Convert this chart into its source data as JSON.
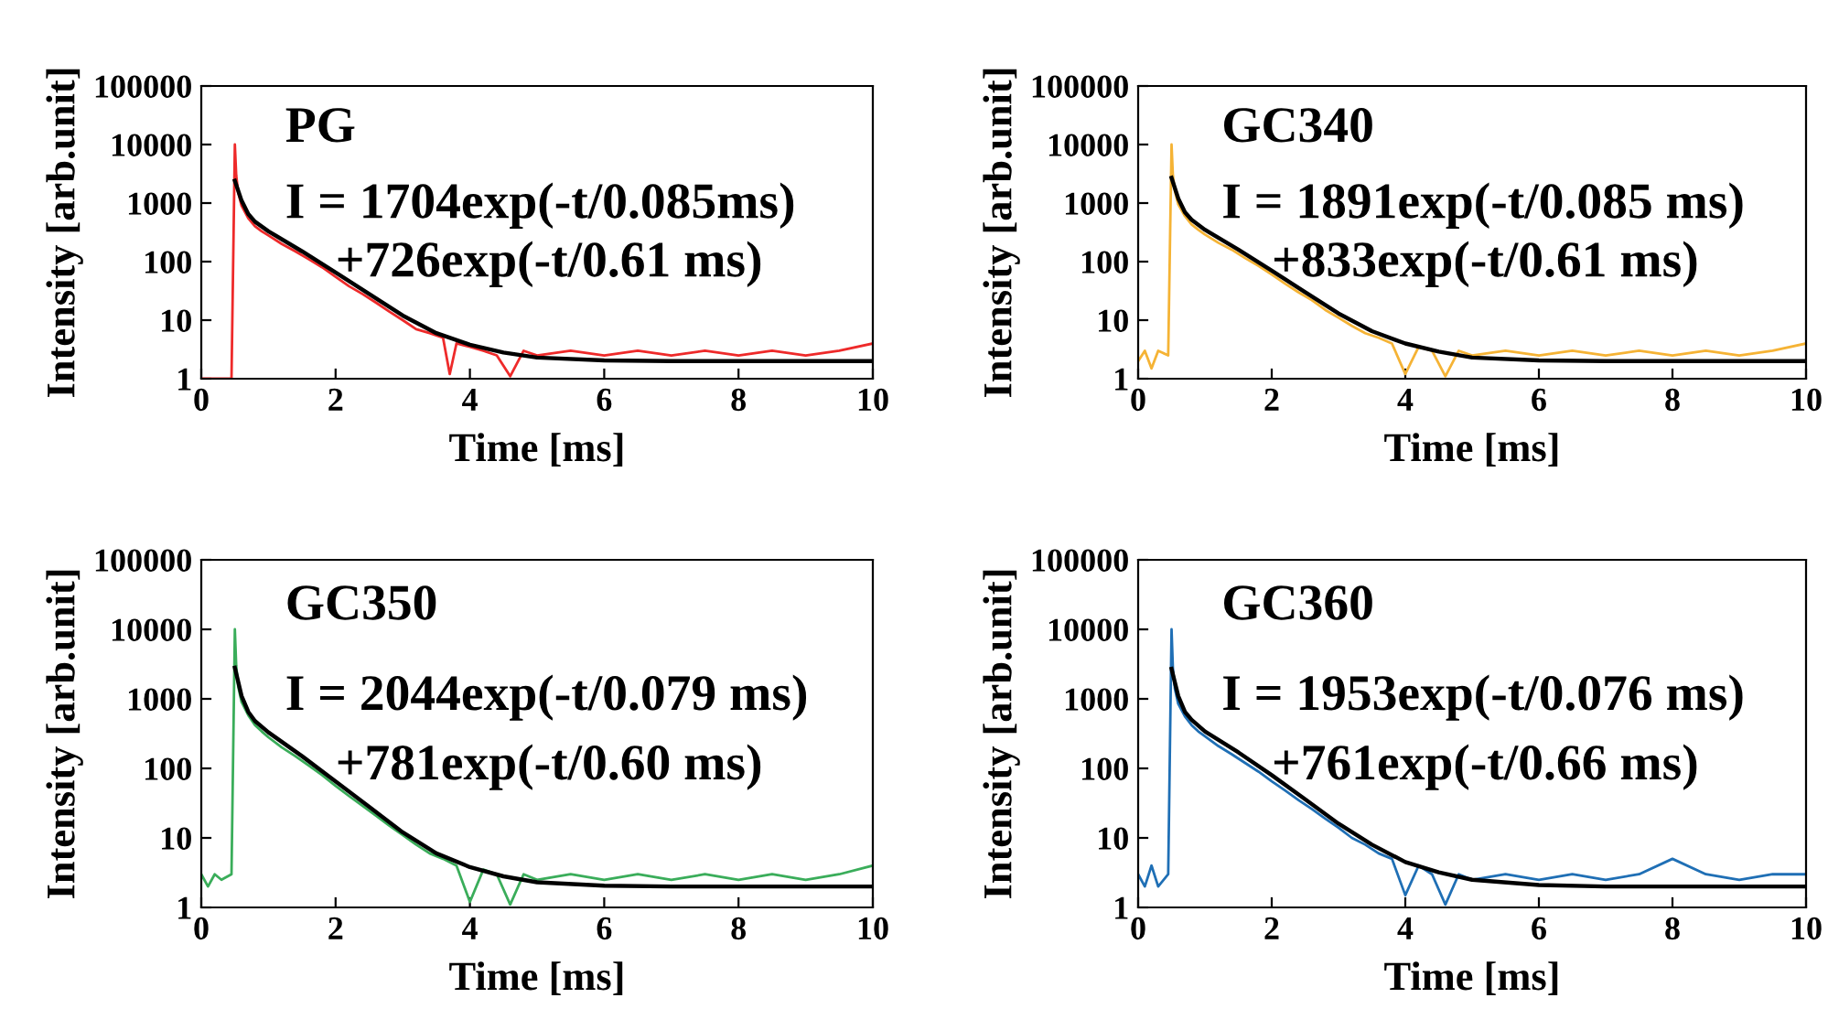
{
  "chart_data": [
    {
      "type": "line",
      "title": "PG",
      "xlabel": "Time [ms]",
      "ylabel": "Intensity [arb.unit]",
      "log": "y",
      "xlim": [
        0,
        10
      ],
      "ylim": [
        1,
        100000
      ],
      "xticks": [
        0,
        2,
        4,
        6,
        8,
        10
      ],
      "yticks": [
        1,
        10,
        100,
        1000,
        10000,
        100000
      ],
      "grid": false,
      "annotations": [
        "I = 1704exp(-t/0.085ms)",
        "+726exp(-t/0.61 ms)"
      ],
      "series": [
        {
          "color": "#ee2a2a",
          "x": [
            0,
            0.45,
            0.5,
            0.52,
            0.55,
            0.6,
            0.7,
            0.8,
            0.9,
            1.0,
            1.2,
            1.4,
            1.6,
            1.8,
            2.0,
            2.2,
            2.4,
            2.6,
            2.8,
            3.0,
            3.2,
            3.4,
            3.6,
            3.7,
            3.8,
            4.0,
            4.2,
            4.4,
            4.6,
            4.8,
            5.0,
            5.5,
            6,
            6.5,
            7,
            7.5,
            8,
            8.5,
            9,
            9.5,
            10
          ],
          "values": [
            1,
            1,
            10000,
            3000,
            1500,
            900,
            550,
            400,
            330,
            280,
            200,
            150,
            110,
            80,
            55,
            38,
            28,
            20,
            14,
            10,
            7,
            6,
            5,
            1.2,
            4,
            3.5,
            3,
            2.5,
            1.1,
            3,
            2.5,
            3,
            2.5,
            3,
            2.5,
            3,
            2.5,
            3,
            2.5,
            3,
            4
          ]
        },
        {
          "color": "#000000",
          "x": [
            0.5,
            0.6,
            0.7,
            0.8,
            1.0,
            1.5,
            2,
            2.5,
            3,
            3.5,
            4,
            4.5,
            5,
            6,
            7,
            8,
            10
          ],
          "values": [
            2400,
            1100,
            650,
            480,
            330,
            150,
            65,
            28,
            12,
            6,
            3.8,
            2.8,
            2.3,
            2.05,
            2,
            2,
            2
          ]
        }
      ]
    },
    {
      "type": "line",
      "title": "GC340",
      "xlabel": "Time [ms]",
      "ylabel": "Intensity [arb.unit]",
      "log": "y",
      "xlim": [
        0,
        10
      ],
      "ylim": [
        1,
        100000
      ],
      "xticks": [
        0,
        2,
        4,
        6,
        8,
        10
      ],
      "yticks": [
        1,
        10,
        100,
        1000,
        10000,
        100000
      ],
      "grid": false,
      "annotations": [
        "I = 1891exp(-t/0.085 ms)",
        "+833exp(-t/0.61 ms)"
      ],
      "series": [
        {
          "color": "#f5b335",
          "x": [
            0,
            0.1,
            0.2,
            0.3,
            0.45,
            0.5,
            0.52,
            0.55,
            0.6,
            0.7,
            0.8,
            0.9,
            1.0,
            1.2,
            1.4,
            1.6,
            1.8,
            2.0,
            2.2,
            2.4,
            2.6,
            2.8,
            3.0,
            3.2,
            3.4,
            3.6,
            3.8,
            4.0,
            4.2,
            4.4,
            4.6,
            4.8,
            5.0,
            5.5,
            6,
            6.5,
            7,
            7.5,
            8,
            8.5,
            9,
            9.5,
            10
          ],
          "values": [
            2,
            3,
            1.5,
            3,
            2.5,
            10000,
            3000,
            1600,
            950,
            600,
            430,
            350,
            290,
            210,
            160,
            115,
            85,
            60,
            42,
            30,
            22,
            15,
            11,
            8,
            6,
            5,
            4,
            1.2,
            3.5,
            3,
            1.1,
            3,
            2.5,
            3,
            2.5,
            3,
            2.5,
            3,
            2.5,
            3,
            2.5,
            3,
            4
          ]
        },
        {
          "color": "#000000",
          "x": [
            0.5,
            0.6,
            0.7,
            0.8,
            1.0,
            1.5,
            2,
            2.5,
            3,
            3.5,
            4,
            4.5,
            5,
            6,
            7,
            8,
            10
          ],
          "values": [
            2700,
            1200,
            700,
            520,
            350,
            160,
            70,
            30,
            13,
            6.5,
            4,
            2.9,
            2.3,
            2.05,
            2,
            2,
            2
          ]
        }
      ]
    },
    {
      "type": "line",
      "title": "GC350",
      "xlabel": "Time [ms]",
      "ylabel": "Intensity [arb.unit]",
      "log": "y",
      "xlim": [
        0,
        10
      ],
      "ylim": [
        1,
        100000
      ],
      "xticks": [
        0,
        2,
        4,
        6,
        8,
        10
      ],
      "yticks": [
        1,
        10,
        100,
        1000,
        10000,
        100000
      ],
      "grid": false,
      "annotations": [
        "I = 2044exp(-t/0.079 ms)",
        "+781exp(-t/0.60 ms)"
      ],
      "series": [
        {
          "color": "#3aad5a",
          "x": [
            0,
            0.1,
            0.2,
            0.3,
            0.45,
            0.5,
            0.52,
            0.55,
            0.6,
            0.7,
            0.8,
            0.9,
            1.0,
            1.2,
            1.4,
            1.6,
            1.8,
            2.0,
            2.2,
            2.4,
            2.6,
            2.8,
            3.0,
            3.2,
            3.4,
            3.6,
            3.8,
            4.0,
            4.2,
            4.4,
            4.6,
            4.8,
            5.0,
            5.5,
            6,
            6.5,
            7,
            7.5,
            8,
            8.5,
            9,
            9.5,
            10
          ],
          "values": [
            3,
            2,
            3,
            2.5,
            3,
            10000,
            3000,
            1500,
            900,
            580,
            420,
            340,
            280,
            200,
            150,
            110,
            80,
            56,
            40,
            29,
            21,
            15,
            11,
            8,
            6,
            5,
            4,
            1.2,
            3.5,
            3,
            1.1,
            3,
            2.5,
            3,
            2.5,
            3,
            2.5,
            3,
            2.5,
            3,
            2.5,
            3,
            4
          ]
        },
        {
          "color": "#000000",
          "x": [
            0.5,
            0.6,
            0.7,
            0.8,
            1.0,
            1.5,
            2,
            2.5,
            3,
            3.5,
            4,
            4.5,
            5,
            6,
            7,
            8,
            10
          ],
          "values": [
            2800,
            1100,
            650,
            480,
            330,
            150,
            65,
            28,
            12,
            6,
            3.8,
            2.8,
            2.3,
            2.05,
            2,
            2,
            2
          ]
        }
      ]
    },
    {
      "type": "line",
      "title": "GC360",
      "xlabel": "Time [ms]",
      "ylabel": "Intensity [arb.unit]",
      "log": "y",
      "xlim": [
        0,
        10
      ],
      "ylim": [
        1,
        100000
      ],
      "xticks": [
        0,
        2,
        4,
        6,
        8,
        10
      ],
      "yticks": [
        1,
        10,
        100,
        1000,
        10000,
        100000
      ],
      "grid": false,
      "annotations": [
        "I = 1953exp(-t/0.076 ms)",
        "+761exp(-t/0.66 ms)"
      ],
      "series": [
        {
          "color": "#1f6fb5",
          "x": [
            0,
            0.1,
            0.2,
            0.3,
            0.45,
            0.5,
            0.52,
            0.55,
            0.6,
            0.7,
            0.8,
            0.9,
            1.0,
            1.2,
            1.4,
            1.6,
            1.8,
            2.0,
            2.2,
            2.4,
            2.6,
            2.8,
            3.0,
            3.2,
            3.4,
            3.6,
            3.8,
            4.0,
            4.2,
            4.4,
            4.6,
            4.8,
            5.0,
            5.5,
            6,
            6.5,
            7,
            7.5,
            8,
            8.5,
            9,
            9.5,
            10
          ],
          "values": [
            3,
            2,
            4,
            2,
            3,
            10000,
            2800,
            1400,
            850,
            560,
            420,
            340,
            290,
            210,
            160,
            120,
            90,
            65,
            48,
            35,
            26,
            19,
            14,
            10,
            8,
            6,
            5,
            1.5,
            4,
            3,
            1.1,
            3,
            2.5,
            3,
            2.5,
            3,
            2.5,
            3,
            5,
            3,
            2.5,
            3,
            3
          ]
        },
        {
          "color": "#000000",
          "x": [
            0.5,
            0.6,
            0.7,
            0.8,
            1.0,
            1.5,
            2,
            2.5,
            3,
            3.5,
            4,
            4.5,
            5,
            6,
            7,
            8,
            10
          ],
          "values": [
            2700,
            1100,
            650,
            500,
            340,
            170,
            80,
            36,
            16,
            8,
            4.5,
            3.2,
            2.5,
            2.1,
            2,
            2,
            2
          ]
        }
      ]
    }
  ]
}
